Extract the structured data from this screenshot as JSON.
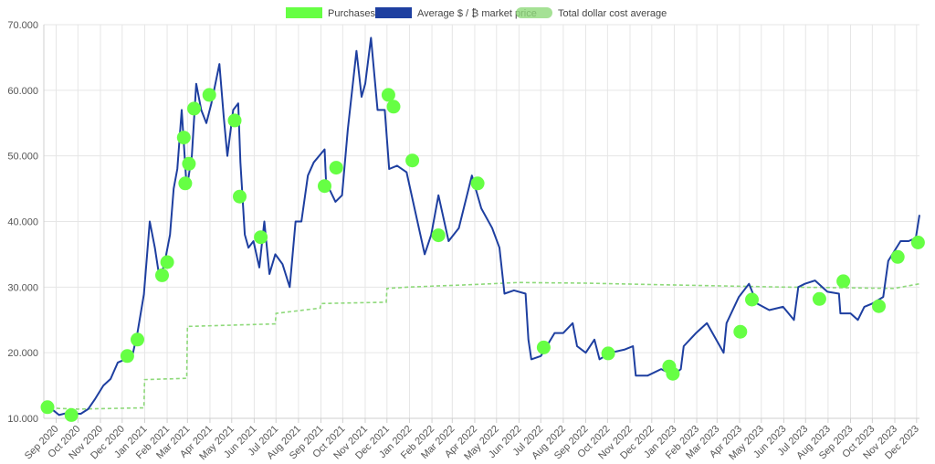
{
  "colors": {
    "purchases": "#66ff44",
    "price": "#1e3fa0",
    "dca": "#8ed97a",
    "grid": "#e6e6e6",
    "axis": "#cfcfcf"
  },
  "legend": [
    {
      "key": "purchases",
      "label": "Purchases",
      "swatch": "solid-green"
    },
    {
      "key": "price",
      "label": "Average $ / ₿ market price",
      "swatch": "solid-blue"
    },
    {
      "key": "dca",
      "label": "Total dollar cost average",
      "swatch": "wavy-green"
    }
  ],
  "chart_data": {
    "type": "line",
    "title": "",
    "xlabel": "",
    "ylabel": "",
    "ylim": [
      10000,
      70000
    ],
    "y_ticks": [
      10000,
      20000,
      30000,
      40000,
      50000,
      60000,
      70000
    ],
    "y_tick_labels": [
      "10.000",
      "20.000",
      "30.000",
      "40.000",
      "50.000",
      "60.000",
      "70.000"
    ],
    "x_range": [
      "2020-08-15",
      "2023-12-05"
    ],
    "x_ticks": [
      {
        "date": "2020-09-01",
        "label": "Sep 2020"
      },
      {
        "date": "2020-10-01",
        "label": "Oct 2020"
      },
      {
        "date": "2020-11-01",
        "label": "Nov 2020"
      },
      {
        "date": "2020-12-01",
        "label": "Dec 2020"
      },
      {
        "date": "2021-01-01",
        "label": "Jan 2021"
      },
      {
        "date": "2021-02-01",
        "label": "Feb 2021"
      },
      {
        "date": "2021-03-01",
        "label": "Mar 2021"
      },
      {
        "date": "2021-04-01",
        "label": "Apr 2021"
      },
      {
        "date": "2021-05-01",
        "label": "May 2021"
      },
      {
        "date": "2021-06-01",
        "label": "Jun 2021"
      },
      {
        "date": "2021-07-01",
        "label": "Jul 2021"
      },
      {
        "date": "2021-08-01",
        "label": "Aug 2021"
      },
      {
        "date": "2021-09-01",
        "label": "Sep 2021"
      },
      {
        "date": "2021-10-01",
        "label": "Oct 2021"
      },
      {
        "date": "2021-11-01",
        "label": "Nov 2021"
      },
      {
        "date": "2021-12-01",
        "label": "Dec 2021"
      },
      {
        "date": "2022-01-01",
        "label": "Jan 2022"
      },
      {
        "date": "2022-02-01",
        "label": "Feb 2022"
      },
      {
        "date": "2022-03-01",
        "label": "Mar 2022"
      },
      {
        "date": "2022-04-01",
        "label": "Apr 2022"
      },
      {
        "date": "2022-05-01",
        "label": "May 2022"
      },
      {
        "date": "2022-06-01",
        "label": "Jun 2022"
      },
      {
        "date": "2022-07-01",
        "label": "Jul 2022"
      },
      {
        "date": "2022-08-01",
        "label": "Aug 2022"
      },
      {
        "date": "2022-09-01",
        "label": "Sep 2022"
      },
      {
        "date": "2022-10-01",
        "label": "Oct 2022"
      },
      {
        "date": "2022-11-01",
        "label": "Nov 2022"
      },
      {
        "date": "2022-12-01",
        "label": "Dec 2022"
      },
      {
        "date": "2023-01-01",
        "label": "Jan 2023"
      },
      {
        "date": "2023-02-01",
        "label": "Feb 2023"
      },
      {
        "date": "2023-03-01",
        "label": "Mar 2023"
      },
      {
        "date": "2023-04-01",
        "label": "Apr 2023"
      },
      {
        "date": "2023-05-01",
        "label": "May 2023"
      },
      {
        "date": "2023-06-01",
        "label": "Jun 2023"
      },
      {
        "date": "2023-07-01",
        "label": "Jul 2023"
      },
      {
        "date": "2023-08-01",
        "label": "Aug 2023"
      },
      {
        "date": "2023-09-01",
        "label": "Sep 2023"
      },
      {
        "date": "2023-10-01",
        "label": "Oct 2023"
      },
      {
        "date": "2023-11-01",
        "label": "Nov 2023"
      },
      {
        "date": "2023-12-01",
        "label": "Dec 2023"
      }
    ],
    "grid": true,
    "legend_position": "top-center",
    "series": [
      {
        "name": "Average $ / ₿ market price",
        "style": "line",
        "points": [
          [
            "2020-08-15",
            11800
          ],
          [
            "2020-08-25",
            11500
          ],
          [
            "2020-09-05",
            10500
          ],
          [
            "2020-09-15",
            10800
          ],
          [
            "2020-09-25",
            10700
          ],
          [
            "2020-10-05",
            10700
          ],
          [
            "2020-10-15",
            11400
          ],
          [
            "2020-10-25",
            13000
          ],
          [
            "2020-11-05",
            15000
          ],
          [
            "2020-11-15",
            16000
          ],
          [
            "2020-11-25",
            18500
          ],
          [
            "2020-12-05",
            19000
          ],
          [
            "2020-12-15",
            19500
          ],
          [
            "2020-12-22",
            23000
          ],
          [
            "2020-12-31",
            28900
          ],
          [
            "2021-01-08",
            40000
          ],
          [
            "2021-01-15",
            36000
          ],
          [
            "2021-01-22",
            31000
          ],
          [
            "2021-01-29",
            34000
          ],
          [
            "2021-02-05",
            38000
          ],
          [
            "2021-02-10",
            45000
          ],
          [
            "2021-02-15",
            48000
          ],
          [
            "2021-02-21",
            57000
          ],
          [
            "2021-02-28",
            45000
          ],
          [
            "2021-03-07",
            50000
          ],
          [
            "2021-03-13",
            61000
          ],
          [
            "2021-03-20",
            57000
          ],
          [
            "2021-03-27",
            55000
          ],
          [
            "2021-04-03",
            58000
          ],
          [
            "2021-04-14",
            64000
          ],
          [
            "2021-04-20",
            56000
          ],
          [
            "2021-04-25",
            50000
          ],
          [
            "2021-05-03",
            57000
          ],
          [
            "2021-05-10",
            58000
          ],
          [
            "2021-05-13",
            49000
          ],
          [
            "2021-05-19",
            38000
          ],
          [
            "2021-05-24",
            36000
          ],
          [
            "2021-05-31",
            37000
          ],
          [
            "2021-06-08",
            33000
          ],
          [
            "2021-06-15",
            40000
          ],
          [
            "2021-06-22",
            32000
          ],
          [
            "2021-06-30",
            35000
          ],
          [
            "2021-07-10",
            33500
          ],
          [
            "2021-07-20",
            30000
          ],
          [
            "2021-07-28",
            40000
          ],
          [
            "2021-08-05",
            40000
          ],
          [
            "2021-08-14",
            47000
          ],
          [
            "2021-08-22",
            49000
          ],
          [
            "2021-09-06",
            51000
          ],
          [
            "2021-09-08",
            46000
          ],
          [
            "2021-09-21",
            43000
          ],
          [
            "2021-09-30",
            44000
          ],
          [
            "2021-10-08",
            54000
          ],
          [
            "2021-10-20",
            66000
          ],
          [
            "2021-10-27",
            59000
          ],
          [
            "2021-11-01",
            61000
          ],
          [
            "2021-11-09",
            68000
          ],
          [
            "2021-11-18",
            57000
          ],
          [
            "2021-11-28",
            57000
          ],
          [
            "2021-12-04",
            48000
          ],
          [
            "2021-12-15",
            48500
          ],
          [
            "2021-12-28",
            47500
          ],
          [
            "2022-01-08",
            42000
          ],
          [
            "2022-01-22",
            35000
          ],
          [
            "2022-01-31",
            38000
          ],
          [
            "2022-02-10",
            44000
          ],
          [
            "2022-02-24",
            37000
          ],
          [
            "2022-03-10",
            39000
          ],
          [
            "2022-03-28",
            47000
          ],
          [
            "2022-04-10",
            42000
          ],
          [
            "2022-04-25",
            39000
          ],
          [
            "2022-05-05",
            36000
          ],
          [
            "2022-05-12",
            29000
          ],
          [
            "2022-05-25",
            29500
          ],
          [
            "2022-06-10",
            29000
          ],
          [
            "2022-06-14",
            22000
          ],
          [
            "2022-06-18",
            19000
          ],
          [
            "2022-07-01",
            19500
          ],
          [
            "2022-07-20",
            23000
          ],
          [
            "2022-08-01",
            23000
          ],
          [
            "2022-08-14",
            24500
          ],
          [
            "2022-08-20",
            21000
          ],
          [
            "2022-09-01",
            20000
          ],
          [
            "2022-09-13",
            22000
          ],
          [
            "2022-09-20",
            19000
          ],
          [
            "2022-10-05",
            20000
          ],
          [
            "2022-10-25",
            20500
          ],
          [
            "2022-11-05",
            21000
          ],
          [
            "2022-11-09",
            16500
          ],
          [
            "2022-11-25",
            16500
          ],
          [
            "2022-12-14",
            17500
          ],
          [
            "2022-12-31",
            16600
          ],
          [
            "2023-01-10",
            17500
          ],
          [
            "2023-01-14",
            21000
          ],
          [
            "2023-01-31",
            23000
          ],
          [
            "2023-02-15",
            24500
          ],
          [
            "2023-03-10",
            20000
          ],
          [
            "2023-03-14",
            24500
          ],
          [
            "2023-03-31",
            28500
          ],
          [
            "2023-04-14",
            30500
          ],
          [
            "2023-04-25",
            27500
          ],
          [
            "2023-05-12",
            26500
          ],
          [
            "2023-05-31",
            27000
          ],
          [
            "2023-06-15",
            25000
          ],
          [
            "2023-06-21",
            30000
          ],
          [
            "2023-06-30",
            30500
          ],
          [
            "2023-07-14",
            31000
          ],
          [
            "2023-07-31",
            29300
          ],
          [
            "2023-08-16",
            29000
          ],
          [
            "2023-08-18",
            26000
          ],
          [
            "2023-09-01",
            26000
          ],
          [
            "2023-09-11",
            25000
          ],
          [
            "2023-09-20",
            27000
          ],
          [
            "2023-10-01",
            27500
          ],
          [
            "2023-10-16",
            28500
          ],
          [
            "2023-10-23",
            34000
          ],
          [
            "2023-11-09",
            37000
          ],
          [
            "2023-11-20",
            37000
          ],
          [
            "2023-11-30",
            37500
          ],
          [
            "2023-12-05",
            41000
          ]
        ]
      },
      {
        "name": "Total dollar cost average",
        "style": "dashed-step",
        "points": [
          [
            "2020-08-15",
            11700
          ],
          [
            "2020-09-05",
            11500
          ],
          [
            "2020-10-01",
            11400
          ],
          [
            "2020-12-31",
            11600
          ],
          [
            "2021-01-01",
            15900
          ],
          [
            "2021-02-28",
            16100
          ],
          [
            "2021-03-01",
            24000
          ],
          [
            "2021-06-30",
            24400
          ],
          [
            "2021-07-01",
            26000
          ],
          [
            "2021-08-31",
            26800
          ],
          [
            "2021-09-01",
            27500
          ],
          [
            "2021-11-30",
            27700
          ],
          [
            "2021-12-01",
            29800
          ],
          [
            "2021-12-31",
            30000
          ],
          [
            "2022-03-31",
            30400
          ],
          [
            "2022-05-31",
            30700
          ],
          [
            "2022-08-31",
            30600
          ],
          [
            "2022-11-30",
            30400
          ],
          [
            "2023-02-28",
            30200
          ],
          [
            "2023-05-31",
            30000
          ],
          [
            "2023-08-31",
            29900
          ],
          [
            "2023-10-31",
            29800
          ],
          [
            "2023-12-05",
            30500
          ]
        ]
      },
      {
        "name": "Purchases",
        "style": "points",
        "points": [
          [
            "2020-08-20",
            11700
          ],
          [
            "2020-09-22",
            10500
          ],
          [
            "2020-12-08",
            19500
          ],
          [
            "2020-12-22",
            22000
          ],
          [
            "2021-01-25",
            31800
          ],
          [
            "2021-02-01",
            33800
          ],
          [
            "2021-02-24",
            52800
          ],
          [
            "2021-02-26",
            45800
          ],
          [
            "2021-03-03",
            48800
          ],
          [
            "2021-03-10",
            57200
          ],
          [
            "2021-03-31",
            59300
          ],
          [
            "2021-05-05",
            55400
          ],
          [
            "2021-05-12",
            43800
          ],
          [
            "2021-06-10",
            37600
          ],
          [
            "2021-09-06",
            45400
          ],
          [
            "2021-09-22",
            48200
          ],
          [
            "2021-12-03",
            59300
          ],
          [
            "2021-12-10",
            57500
          ],
          [
            "2022-01-05",
            49300
          ],
          [
            "2022-02-10",
            37900
          ],
          [
            "2022-04-05",
            45800
          ],
          [
            "2022-07-05",
            20800
          ],
          [
            "2022-10-02",
            19900
          ],
          [
            "2022-12-25",
            17900
          ],
          [
            "2022-12-30",
            16800
          ],
          [
            "2023-04-02",
            23200
          ],
          [
            "2023-04-18",
            28100
          ],
          [
            "2023-07-20",
            28200
          ],
          [
            "2023-08-22",
            30900
          ],
          [
            "2023-10-10",
            27100
          ],
          [
            "2023-11-05",
            34600
          ],
          [
            "2023-12-03",
            36800
          ]
        ]
      }
    ]
  }
}
